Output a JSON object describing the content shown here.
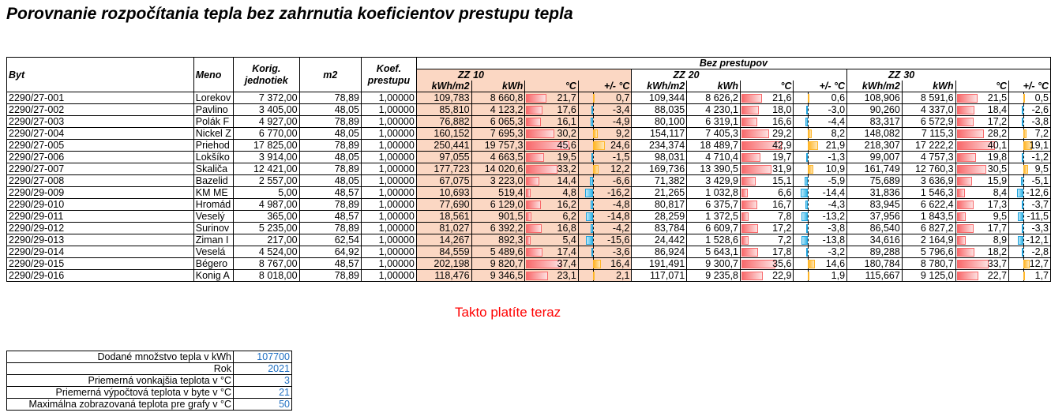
{
  "title": "Porovnanie rozpočítania tepla bez zahrnutia koeficientov prestupu tepla",
  "header": {
    "byt": "Byt",
    "meno": "Meno",
    "korig": "Korig. jednotiek",
    "m2": "m2",
    "koef": "Koef. prestupu",
    "group": "Bez prestupov",
    "zz": "ZZ",
    "t10": "10",
    "t20": "20",
    "t30": "30",
    "kwhm2": "kWh/m2",
    "kwh": "kWh",
    "degc": "°C",
    "dev": "+/- °C"
  },
  "rows": [
    {
      "byt": "2290/27-001",
      "meno": "Lorekov",
      "korig": "7 372,00",
      "m2": "78,89",
      "koef": "1,00000",
      "s10": {
        "kwhm2": "109,783",
        "kwh": "8 660,8",
        "c": 21.7,
        "ct": "21,7",
        "d": 0.7,
        "dt": "0,7"
      },
      "s20": {
        "kwhm2": "109,344",
        "kwh": "8 626,2",
        "c": 21.6,
        "ct": "21,6",
        "d": 0.6,
        "dt": "0,6"
      },
      "s30": {
        "kwhm2": "108,906",
        "kwh": "8 591,6",
        "c": 21.5,
        "ct": "21,5",
        "d": 0.5,
        "dt": "0,5"
      }
    },
    {
      "byt": "2290/27-002",
      "meno": "Pavlino",
      "korig": "3 405,00",
      "m2": "48,05",
      "koef": "1,00000",
      "s10": {
        "kwhm2": "85,810",
        "kwh": "4 123,2",
        "c": 17.6,
        "ct": "17,6",
        "d": -3.4,
        "dt": "-3,4"
      },
      "s20": {
        "kwhm2": "88,035",
        "kwh": "4 230,1",
        "c": 18.0,
        "ct": "18,0",
        "d": -3.0,
        "dt": "-3,0"
      },
      "s30": {
        "kwhm2": "90,260",
        "kwh": "4 337,0",
        "c": 18.4,
        "ct": "18,4",
        "d": -2.6,
        "dt": "-2,6"
      }
    },
    {
      "byt": "2290/27-003",
      "meno": "Polák F",
      "korig": "4 927,00",
      "m2": "78,89",
      "koef": "1,00000",
      "s10": {
        "kwhm2": "76,882",
        "kwh": "6 065,3",
        "c": 16.1,
        "ct": "16,1",
        "d": -4.9,
        "dt": "-4,9"
      },
      "s20": {
        "kwhm2": "80,100",
        "kwh": "6 319,1",
        "c": 16.6,
        "ct": "16,6",
        "d": -4.4,
        "dt": "-4,4"
      },
      "s30": {
        "kwhm2": "83,317",
        "kwh": "6 572,9",
        "c": 17.2,
        "ct": "17,2",
        "d": -3.8,
        "dt": "-3,8"
      }
    },
    {
      "byt": "2290/27-004",
      "meno": "Nickel Z",
      "korig": "6 770,00",
      "m2": "48,05",
      "koef": "1,00000",
      "s10": {
        "kwhm2": "160,152",
        "kwh": "7 695,3",
        "c": 30.2,
        "ct": "30,2",
        "d": 9.2,
        "dt": "9,2"
      },
      "s20": {
        "kwhm2": "154,117",
        "kwh": "7 405,3",
        "c": 29.2,
        "ct": "29,2",
        "d": 8.2,
        "dt": "8,2"
      },
      "s30": {
        "kwhm2": "148,082",
        "kwh": "7 115,3",
        "c": 28.2,
        "ct": "28,2",
        "d": 7.2,
        "dt": "7,2"
      }
    },
    {
      "byt": "2290/27-005",
      "meno": "Priehod",
      "korig": "17 825,00",
      "m2": "78,89",
      "koef": "1,00000",
      "s10": {
        "kwhm2": "250,441",
        "kwh": "19 757,3",
        "c": 45.6,
        "ct": "45,6",
        "d": 24.6,
        "dt": "24,6"
      },
      "s20": {
        "kwhm2": "234,374",
        "kwh": "18 489,7",
        "c": 42.9,
        "ct": "42,9",
        "d": 21.9,
        "dt": "21,9"
      },
      "s30": {
        "kwhm2": "218,307",
        "kwh": "17 222,2",
        "c": 40.1,
        "ct": "40,1",
        "d": 19.1,
        "dt": "19,1"
      }
    },
    {
      "byt": "2290/27-006",
      "meno": "Lokšíko",
      "korig": "3 914,00",
      "m2": "48,05",
      "koef": "1,00000",
      "s10": {
        "kwhm2": "97,055",
        "kwh": "4 663,5",
        "c": 19.5,
        "ct": "19,5",
        "d": -1.5,
        "dt": "-1,5"
      },
      "s20": {
        "kwhm2": "98,031",
        "kwh": "4 710,4",
        "c": 19.7,
        "ct": "19,7",
        "d": -1.3,
        "dt": "-1,3"
      },
      "s30": {
        "kwhm2": "99,007",
        "kwh": "4 757,3",
        "c": 19.8,
        "ct": "19,8",
        "d": -1.2,
        "dt": "-1,2"
      }
    },
    {
      "byt": "2290/27-007",
      "meno": "Skaliča",
      "korig": "12 421,00",
      "m2": "78,89",
      "koef": "1,00000",
      "s10": {
        "kwhm2": "177,723",
        "kwh": "14 020,6",
        "c": 33.2,
        "ct": "33,2",
        "d": 12.2,
        "dt": "12,2"
      },
      "s20": {
        "kwhm2": "169,736",
        "kwh": "13 390,5",
        "c": 31.9,
        "ct": "31,9",
        "d": 10.9,
        "dt": "10,9"
      },
      "s30": {
        "kwhm2": "161,749",
        "kwh": "12 760,3",
        "c": 30.5,
        "ct": "30,5",
        "d": 9.5,
        "dt": "9,5"
      }
    },
    {
      "byt": "2290/27-008",
      "meno": "Bazelid",
      "korig": "2 557,00",
      "m2": "48,05",
      "koef": "1,00000",
      "s10": {
        "kwhm2": "67,075",
        "kwh": "3 223,0",
        "c": 14.4,
        "ct": "14,4",
        "d": -6.6,
        "dt": "-6,6"
      },
      "s20": {
        "kwhm2": "71,382",
        "kwh": "3 429,9",
        "c": 15.1,
        "ct": "15,1",
        "d": -5.9,
        "dt": "-5,9"
      },
      "s30": {
        "kwhm2": "75,689",
        "kwh": "3 636,9",
        "c": 15.9,
        "ct": "15,9",
        "d": -5.1,
        "dt": "-5,1"
      }
    },
    {
      "byt": "2290/29-009",
      "meno": "KM ME",
      "korig": "5,00",
      "m2": "48,57",
      "koef": "1,00000",
      "s10": {
        "kwhm2": "10,693",
        "kwh": "519,4",
        "c": 4.8,
        "ct": "4,8",
        "d": -16.2,
        "dt": "-16,2"
      },
      "s20": {
        "kwhm2": "21,265",
        "kwh": "1 032,8",
        "c": 6.6,
        "ct": "6,6",
        "d": -14.4,
        "dt": "-14,4"
      },
      "s30": {
        "kwhm2": "31,836",
        "kwh": "1 546,3",
        "c": 8.4,
        "ct": "8,4",
        "d": -12.6,
        "dt": "-12,6"
      }
    },
    {
      "byt": "2290/29-010",
      "meno": "Hromád",
      "korig": "4 987,00",
      "m2": "78,89",
      "koef": "1,00000",
      "s10": {
        "kwhm2": "77,690",
        "kwh": "6 129,0",
        "c": 16.2,
        "ct": "16,2",
        "d": -4.8,
        "dt": "-4,8"
      },
      "s20": {
        "kwhm2": "80,817",
        "kwh": "6 375,7",
        "c": 16.7,
        "ct": "16,7",
        "d": -4.3,
        "dt": "-4,3"
      },
      "s30": {
        "kwhm2": "83,945",
        "kwh": "6 622,4",
        "c": 17.3,
        "ct": "17,3",
        "d": -3.7,
        "dt": "-3,7"
      }
    },
    {
      "byt": "2290/29-011",
      "meno": "Veselý",
      "korig": "365,00",
      "m2": "48,57",
      "koef": "1,00000",
      "s10": {
        "kwhm2": "18,561",
        "kwh": "901,5",
        "c": 6.2,
        "ct": "6,2",
        "d": -14.8,
        "dt": "-14,8"
      },
      "s20": {
        "kwhm2": "28,259",
        "kwh": "1 372,5",
        "c": 7.8,
        "ct": "7,8",
        "d": -13.2,
        "dt": "-13,2"
      },
      "s30": {
        "kwhm2": "37,956",
        "kwh": "1 843,5",
        "c": 9.5,
        "ct": "9,5",
        "d": -11.5,
        "dt": "-11,5"
      }
    },
    {
      "byt": "2290/29-012",
      "meno": "Surinov",
      "korig": "5 235,00",
      "m2": "78,89",
      "koef": "1,00000",
      "s10": {
        "kwhm2": "81,027",
        "kwh": "6 392,2",
        "c": 16.8,
        "ct": "16,8",
        "d": -4.2,
        "dt": "-4,2"
      },
      "s20": {
        "kwhm2": "83,784",
        "kwh": "6 609,7",
        "c": 17.2,
        "ct": "17,2",
        "d": -3.8,
        "dt": "-3,8"
      },
      "s30": {
        "kwhm2": "86,540",
        "kwh": "6 827,2",
        "c": 17.7,
        "ct": "17,7",
        "d": -3.3,
        "dt": "-3,3"
      }
    },
    {
      "byt": "2290/29-013",
      "meno": "Ziman I",
      "korig": "217,00",
      "m2": "62,54",
      "koef": "1,00000",
      "s10": {
        "kwhm2": "14,267",
        "kwh": "892,3",
        "c": 5.4,
        "ct": "5,4",
        "d": -15.6,
        "dt": "-15,6"
      },
      "s20": {
        "kwhm2": "24,442",
        "kwh": "1 528,6",
        "c": 7.2,
        "ct": "7,2",
        "d": -13.8,
        "dt": "-13,8"
      },
      "s30": {
        "kwhm2": "34,616",
        "kwh": "2 164,9",
        "c": 8.9,
        "ct": "8,9",
        "d": -12.1,
        "dt": "-12,1"
      }
    },
    {
      "byt": "2290/29-014",
      "meno": "Veselá",
      "korig": "4 524,00",
      "m2": "64,92",
      "koef": "1,00000",
      "s10": {
        "kwhm2": "84,559",
        "kwh": "5 489,6",
        "c": 17.4,
        "ct": "17,4",
        "d": -3.6,
        "dt": "-3,6"
      },
      "s20": {
        "kwhm2": "86,924",
        "kwh": "5 643,1",
        "c": 17.8,
        "ct": "17,8",
        "d": -3.2,
        "dt": "-3,2"
      },
      "s30": {
        "kwhm2": "89,288",
        "kwh": "5 796,6",
        "c": 18.2,
        "ct": "18,2",
        "d": -2.8,
        "dt": "-2,8"
      }
    },
    {
      "byt": "2290/29-015",
      "meno": "Bégero",
      "korig": "8 767,00",
      "m2": "48,57",
      "koef": "1,00000",
      "s10": {
        "kwhm2": "202,198",
        "kwh": "9 820,7",
        "c": 37.4,
        "ct": "37,4",
        "d": 16.4,
        "dt": "16,4"
      },
      "s20": {
        "kwhm2": "191,491",
        "kwh": "9 300,7",
        "c": 35.6,
        "ct": "35,6",
        "d": 14.6,
        "dt": "14,6"
      },
      "s30": {
        "kwhm2": "180,784",
        "kwh": "8 780,7",
        "c": 33.7,
        "ct": "33,7",
        "d": 12.7,
        "dt": "12,7"
      }
    },
    {
      "byt": "2290/29-016",
      "meno": "Konig A",
      "korig": "8 018,00",
      "m2": "78,89",
      "koef": "1,00000",
      "s10": {
        "kwhm2": "118,476",
        "kwh": "9 346,5",
        "c": 23.1,
        "ct": "23,1",
        "d": 2.1,
        "dt": "2,1"
      },
      "s20": {
        "kwhm2": "117,071",
        "kwh": "9 235,8",
        "c": 22.9,
        "ct": "22,9",
        "d": 1.9,
        "dt": "1,9"
      },
      "s30": {
        "kwhm2": "115,667",
        "kwh": "9 125,0",
        "c": 22.7,
        "ct": "22,7",
        "d": 1.7,
        "dt": "1,7"
      }
    }
  ],
  "scale": {
    "max_temp": 50
  },
  "note": "Takto platíte teraz",
  "params": [
    {
      "label": "Dodané množstvo tepla v kWh",
      "value": "107700"
    },
    {
      "label": "Rok",
      "value": "2021"
    },
    {
      "label": "Priemerná vonkajšia teplota v °C",
      "value": "3"
    },
    {
      "label": "Priemerná výpočtová teplota v byte v °C",
      "value": "21"
    },
    {
      "label": "Maximálna zobrazovaná teplota pre grafy v °C",
      "value": "50"
    }
  ],
  "colors": {
    "pink_bg": "#fbd7c3",
    "bar_pos": "#f8696b",
    "bar_neg": "#35b6e7",
    "bar_dev_pos": "#ffb628",
    "note": "#ff0000",
    "param_value": "#1f6fc2"
  }
}
